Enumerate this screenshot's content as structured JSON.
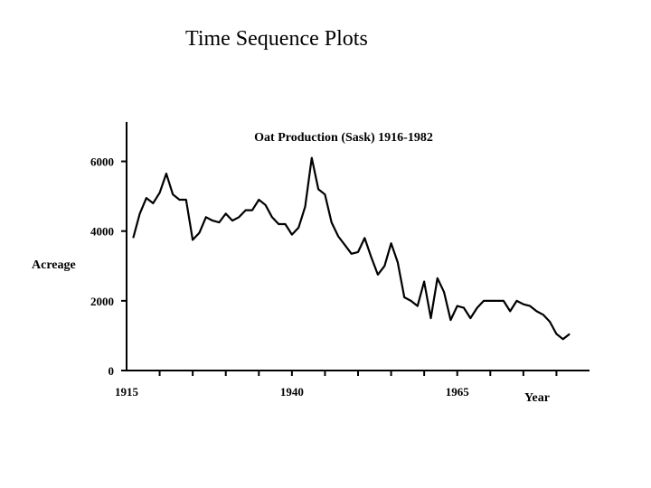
{
  "slide": {
    "title": "Time Sequence Plots"
  },
  "chart_data": {
    "type": "line",
    "title": "Oat Production (Sask) 1916-1982",
    "xlabel": "Year",
    "ylabel": "Acreage",
    "xlim": [
      1915,
      1985
    ],
    "ylim": [
      0,
      7000
    ],
    "x_ticks": [
      1915,
      1940,
      1965
    ],
    "y_ticks": [
      0,
      2000,
      4000,
      6000
    ],
    "grid": false,
    "series": [
      {
        "x": [
          1916,
          1917,
          1918,
          1919,
          1920,
          1921,
          1922,
          1923,
          1924,
          1925,
          1926,
          1927,
          1928,
          1929,
          1930,
          1931,
          1932,
          1933,
          1934,
          1935,
          1936,
          1937,
          1938,
          1939,
          1940,
          1941,
          1942,
          1943,
          1944,
          1945,
          1946,
          1947,
          1948,
          1949,
          1950,
          1951,
          1952,
          1953,
          1954,
          1955,
          1956,
          1957,
          1958,
          1959,
          1960,
          1961,
          1962,
          1963,
          1964,
          1965,
          1966,
          1967,
          1968,
          1969,
          1970,
          1971,
          1972,
          1973,
          1974,
          1975,
          1976,
          1977,
          1978,
          1979,
          1980,
          1981,
          1982
        ],
        "values": [
          3800,
          4500,
          4950,
          4800,
          5100,
          5650,
          5050,
          4900,
          4900,
          3750,
          3950,
          4400,
          4300,
          4250,
          4500,
          4300,
          4400,
          4600,
          4600,
          4900,
          4750,
          4400,
          4200,
          4200,
          3900,
          4100,
          4700,
          6100,
          5200,
          5050,
          4250,
          3850,
          3600,
          3350,
          3400,
          3800,
          3250,
          2750,
          3000,
          3650,
          3100,
          2100,
          2000,
          1850,
          2550,
          1500,
          2650,
          2250,
          1450,
          1850,
          1800,
          1500,
          1800,
          2000,
          2000,
          2000,
          2000,
          1700,
          2000,
          1900,
          1850,
          1700,
          1600,
          1400,
          1050,
          900,
          1050
        ]
      }
    ]
  }
}
